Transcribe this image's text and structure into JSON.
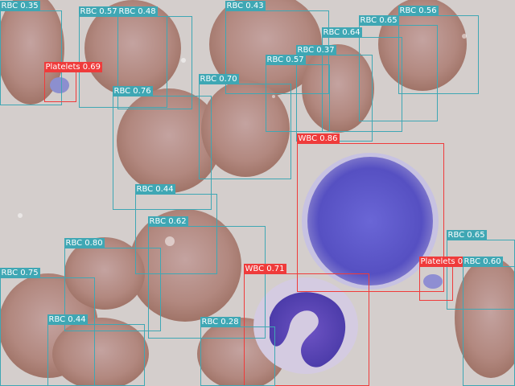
{
  "colors": {
    "RBC": "#3fa7b4",
    "WBC": "#ef3b3b",
    "Platelets": "#ef3b3b"
  },
  "detections": [
    {
      "label": "RBC 0.35",
      "cls": "RBC"
    },
    {
      "label": "RBC 0.57",
      "cls": "RBC"
    },
    {
      "label": "RBC 0.48",
      "cls": "RBC"
    },
    {
      "label": "RBC 0.43",
      "cls": "RBC"
    },
    {
      "label": "RBC 0.56",
      "cls": "RBC"
    },
    {
      "label": "RBC 0.65",
      "cls": "RBC"
    },
    {
      "label": "RBC 0.64",
      "cls": "RBC"
    },
    {
      "label": "RBC 0.37",
      "cls": "RBC"
    },
    {
      "label": "RBC 0.57",
      "cls": "RBC"
    },
    {
      "label": "Platelets 0.69",
      "cls": "Platelets"
    },
    {
      "label": "RBC 0.70",
      "cls": "RBC"
    },
    {
      "label": "RBC 0.76",
      "cls": "RBC"
    },
    {
      "label": "WBC 0.86",
      "cls": "WBC"
    },
    {
      "label": "RBC 0.44",
      "cls": "RBC"
    },
    {
      "label": "RBC 0.62",
      "cls": "RBC"
    },
    {
      "label": "RBC 0.65",
      "cls": "RBC"
    },
    {
      "label": "RBC 0.80",
      "cls": "RBC"
    },
    {
      "label": "Platelets 0",
      "cls": "Platelets"
    },
    {
      "label": "RBC 0.60",
      "cls": "RBC"
    },
    {
      "label": "WBC 0.71",
      "cls": "WBC"
    },
    {
      "label": "RBC 0.75",
      "cls": "RBC"
    },
    {
      "label": "RBC 0.44",
      "cls": "RBC"
    },
    {
      "label": "RBC 0.28",
      "cls": "RBC"
    }
  ]
}
